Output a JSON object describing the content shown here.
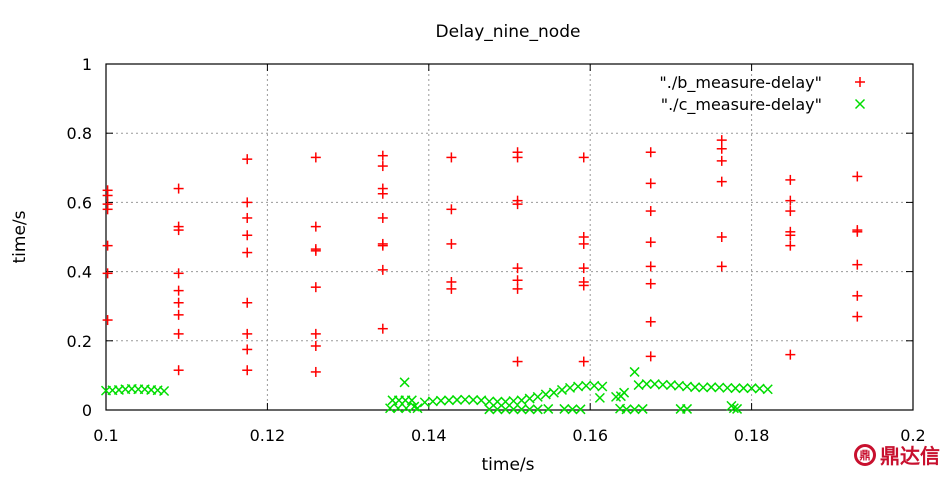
{
  "chart_data": {
    "type": "scatter",
    "title": "Delay_nine_node",
    "xlabel": "time/s",
    "ylabel": "time/s",
    "xlim": [
      0.1,
      0.2
    ],
    "ylim": [
      0,
      1
    ],
    "xticks": [
      "0.1",
      "0.12",
      "0.14",
      "0.16",
      "0.18",
      "0.2"
    ],
    "yticks": [
      "0",
      "0.2",
      "0.4",
      "0.6",
      "0.8",
      "1"
    ],
    "grid": true,
    "legend_position": "top-right",
    "series": [
      {
        "name": "\"./b_measure-delay\"",
        "marker": "plus",
        "color": "#ff0000",
        "points": [
          [
            0.1002,
            0.635
          ],
          [
            0.1002,
            0.62
          ],
          [
            0.1002,
            0.595
          ],
          [
            0.1002,
            0.58
          ],
          [
            0.1002,
            0.475
          ],
          [
            0.1002,
            0.395
          ],
          [
            0.1002,
            0.26
          ],
          [
            0.109,
            0.64
          ],
          [
            0.109,
            0.53
          ],
          [
            0.109,
            0.52
          ],
          [
            0.109,
            0.395
          ],
          [
            0.109,
            0.345
          ],
          [
            0.109,
            0.31
          ],
          [
            0.109,
            0.275
          ],
          [
            0.109,
            0.22
          ],
          [
            0.109,
            0.115
          ],
          [
            0.1175,
            0.725
          ],
          [
            0.1175,
            0.6
          ],
          [
            0.1175,
            0.555
          ],
          [
            0.1175,
            0.505
          ],
          [
            0.1175,
            0.455
          ],
          [
            0.1175,
            0.31
          ],
          [
            0.1175,
            0.22
          ],
          [
            0.1175,
            0.175
          ],
          [
            0.1175,
            0.115
          ],
          [
            0.126,
            0.73
          ],
          [
            0.126,
            0.53
          ],
          [
            0.126,
            0.465
          ],
          [
            0.126,
            0.46
          ],
          [
            0.126,
            0.355
          ],
          [
            0.126,
            0.22
          ],
          [
            0.126,
            0.185
          ],
          [
            0.126,
            0.11
          ],
          [
            0.1343,
            0.735
          ],
          [
            0.1343,
            0.705
          ],
          [
            0.1343,
            0.64
          ],
          [
            0.1343,
            0.625
          ],
          [
            0.1343,
            0.555
          ],
          [
            0.1343,
            0.48
          ],
          [
            0.1343,
            0.475
          ],
          [
            0.1343,
            0.405
          ],
          [
            0.1343,
            0.235
          ],
          [
            0.1428,
            0.73
          ],
          [
            0.1428,
            0.58
          ],
          [
            0.1428,
            0.48
          ],
          [
            0.1428,
            0.37
          ],
          [
            0.1428,
            0.35
          ],
          [
            0.151,
            0.745
          ],
          [
            0.151,
            0.73
          ],
          [
            0.151,
            0.605
          ],
          [
            0.151,
            0.595
          ],
          [
            0.151,
            0.41
          ],
          [
            0.151,
            0.375
          ],
          [
            0.151,
            0.35
          ],
          [
            0.151,
            0.14
          ],
          [
            0.1592,
            0.73
          ],
          [
            0.1592,
            0.5
          ],
          [
            0.1592,
            0.48
          ],
          [
            0.1592,
            0.41
          ],
          [
            0.1592,
            0.37
          ],
          [
            0.1592,
            0.36
          ],
          [
            0.1592,
            0.14
          ],
          [
            0.1675,
            0.745
          ],
          [
            0.1675,
            0.655
          ],
          [
            0.1675,
            0.575
          ],
          [
            0.1675,
            0.485
          ],
          [
            0.1675,
            0.415
          ],
          [
            0.1675,
            0.365
          ],
          [
            0.1675,
            0.255
          ],
          [
            0.1675,
            0.155
          ],
          [
            0.1763,
            0.78
          ],
          [
            0.1763,
            0.755
          ],
          [
            0.1763,
            0.72
          ],
          [
            0.1763,
            0.66
          ],
          [
            0.1763,
            0.5
          ],
          [
            0.1763,
            0.415
          ],
          [
            0.1848,
            0.665
          ],
          [
            0.1848,
            0.605
          ],
          [
            0.1848,
            0.575
          ],
          [
            0.1848,
            0.515
          ],
          [
            0.1848,
            0.505
          ],
          [
            0.1848,
            0.475
          ],
          [
            0.1848,
            0.16
          ],
          [
            0.1931,
            0.675
          ],
          [
            0.1931,
            0.52
          ],
          [
            0.1931,
            0.515
          ],
          [
            0.1931,
            0.42
          ],
          [
            0.1931,
            0.33
          ],
          [
            0.1931,
            0.27
          ]
        ]
      },
      {
        "name": "\"./c_measure-delay\"",
        "marker": "cross",
        "color": "#00dd00",
        "points": [
          [
            0.1,
            0.056
          ],
          [
            0.1008,
            0.057
          ],
          [
            0.1016,
            0.058
          ],
          [
            0.1024,
            0.06
          ],
          [
            0.1032,
            0.061
          ],
          [
            0.104,
            0.06
          ],
          [
            0.1048,
            0.06
          ],
          [
            0.1056,
            0.058
          ],
          [
            0.1064,
            0.057
          ],
          [
            0.1072,
            0.055
          ],
          [
            0.137,
            0.08
          ],
          [
            0.1355,
            0.028
          ],
          [
            0.1363,
            0.028
          ],
          [
            0.1371,
            0.028
          ],
          [
            0.1379,
            0.028
          ],
          [
            0.1352,
            0.005
          ],
          [
            0.1362,
            0.005
          ],
          [
            0.1372,
            0.005
          ],
          [
            0.1382,
            0.01
          ],
          [
            0.1386,
            0.005
          ],
          [
            0.1395,
            0.022
          ],
          [
            0.1405,
            0.025
          ],
          [
            0.1415,
            0.027
          ],
          [
            0.1425,
            0.028
          ],
          [
            0.1435,
            0.029
          ],
          [
            0.1445,
            0.03
          ],
          [
            0.1455,
            0.029
          ],
          [
            0.1465,
            0.028
          ],
          [
            0.1475,
            0.025
          ],
          [
            0.1485,
            0.024
          ],
          [
            0.1495,
            0.024
          ],
          [
            0.1505,
            0.026
          ],
          [
            0.1515,
            0.028
          ],
          [
            0.1525,
            0.033
          ],
          [
            0.1535,
            0.038
          ],
          [
            0.1545,
            0.045
          ],
          [
            0.1555,
            0.05
          ],
          [
            0.1565,
            0.058
          ],
          [
            0.1575,
            0.064
          ],
          [
            0.1475,
            0.002
          ],
          [
            0.1485,
            0.002
          ],
          [
            0.1495,
            0.002
          ],
          [
            0.1505,
            0.002
          ],
          [
            0.1515,
            0.002
          ],
          [
            0.1525,
            0.002
          ],
          [
            0.1535,
            0.002
          ],
          [
            0.1548,
            0.003
          ],
          [
            0.1568,
            0.003
          ],
          [
            0.1578,
            0.002
          ],
          [
            0.1588,
            0.002
          ],
          [
            0.1585,
            0.068
          ],
          [
            0.1595,
            0.07
          ],
          [
            0.1605,
            0.07
          ],
          [
            0.1615,
            0.068
          ],
          [
            0.1612,
            0.035
          ],
          [
            0.1632,
            0.038
          ],
          [
            0.1638,
            0.04
          ],
          [
            0.1642,
            0.05
          ],
          [
            0.1655,
            0.11
          ],
          [
            0.166,
            0.072
          ],
          [
            0.167,
            0.075
          ],
          [
            0.168,
            0.075
          ],
          [
            0.169,
            0.073
          ],
          [
            0.17,
            0.072
          ],
          [
            0.171,
            0.07
          ],
          [
            0.172,
            0.068
          ],
          [
            0.173,
            0.066
          ],
          [
            0.174,
            0.065
          ],
          [
            0.175,
            0.066
          ],
          [
            0.176,
            0.065
          ],
          [
            0.177,
            0.064
          ],
          [
            0.178,
            0.063
          ],
          [
            0.179,
            0.063
          ],
          [
            0.18,
            0.063
          ],
          [
            0.181,
            0.062
          ],
          [
            0.182,
            0.06
          ],
          [
            0.1637,
            0.004
          ],
          [
            0.1645,
            0.002
          ],
          [
            0.1655,
            0.002
          ],
          [
            0.1665,
            0.003
          ],
          [
            0.1712,
            0.003
          ],
          [
            0.172,
            0.003
          ],
          [
            0.1775,
            0.012
          ],
          [
            0.1778,
            0.005
          ],
          [
            0.1782,
            0.003
          ]
        ]
      }
    ]
  },
  "watermark": {
    "logo_text": "鼎",
    "text": "鼎达信"
  }
}
